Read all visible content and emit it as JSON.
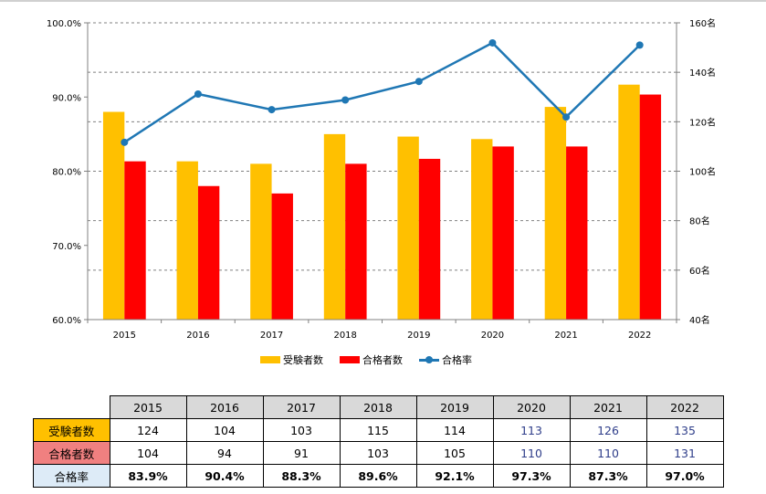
{
  "colors": {
    "examinees": "#FFC000",
    "passers": "#FF0000",
    "rate": "#1F77B4",
    "row_examinees_bg": "#FFC000",
    "row_passers_bg": "#F08080",
    "row_rate_bg": "#DDEBF7"
  },
  "chart_data": {
    "type": "bar",
    "categories": [
      "2015",
      "2016",
      "2017",
      "2018",
      "2019",
      "2020",
      "2021",
      "2022"
    ],
    "series": [
      {
        "name": "受験者数",
        "type": "bar",
        "axis": "right",
        "values": [
          124,
          104,
          103,
          115,
          114,
          113,
          126,
          135
        ]
      },
      {
        "name": "合格者数",
        "type": "bar",
        "axis": "right",
        "values": [
          104,
          94,
          91,
          103,
          105,
          110,
          110,
          131
        ]
      },
      {
        "name": "合格率",
        "type": "line",
        "axis": "left",
        "values": [
          83.9,
          90.4,
          88.3,
          89.6,
          92.1,
          97.3,
          87.3,
          97.0
        ]
      }
    ],
    "y_left": {
      "range": [
        60,
        100
      ],
      "ticks": [
        "60.0%",
        "70.0%",
        "80.0%",
        "90.0%",
        "100.0%"
      ]
    },
    "y_right": {
      "range": [
        40,
        160
      ],
      "ticks": [
        "40名",
        "60名",
        "80名",
        "100名",
        "120名",
        "140名",
        "160名"
      ]
    },
    "grid": "dashed-horizontal",
    "legend": "bottom"
  },
  "table": {
    "years": [
      "2015",
      "2016",
      "2017",
      "2018",
      "2019",
      "2020",
      "2021",
      "2022"
    ],
    "rows": [
      {
        "label": "受験者数",
        "values": [
          "124",
          "104",
          "103",
          "115",
          "114",
          "113",
          "126",
          "135"
        ]
      },
      {
        "label": "合格者数",
        "values": [
          "104",
          "94",
          "91",
          "103",
          "105",
          "110",
          "110",
          "131"
        ]
      },
      {
        "label": "合格率",
        "values": [
          "83.9%",
          "90.4%",
          "88.3%",
          "89.6%",
          "92.1%",
          "97.3%",
          "87.3%",
          "97.0%"
        ]
      }
    ]
  }
}
